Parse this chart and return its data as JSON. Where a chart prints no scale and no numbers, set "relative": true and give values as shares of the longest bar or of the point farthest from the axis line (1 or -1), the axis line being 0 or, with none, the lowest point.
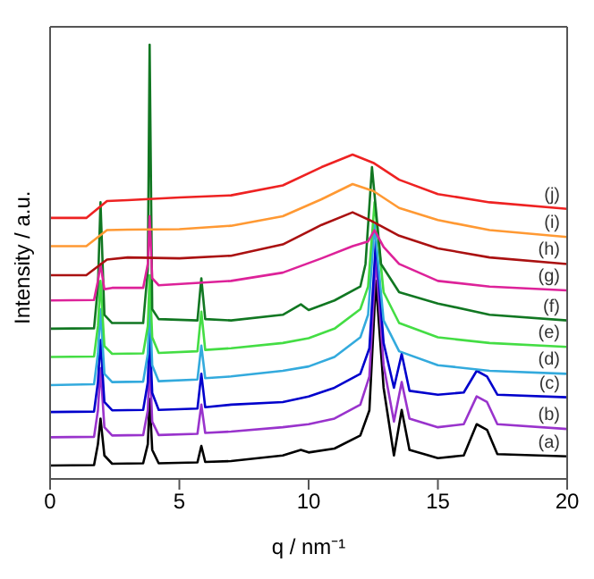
{
  "chart_data": {
    "type": "line",
    "relative": true,
    "xlabel": "q / nm⁻¹",
    "ylabel": "Intensity / a.u.",
    "xlim": [
      0,
      20
    ],
    "xticks": [
      0,
      5,
      10,
      15,
      20
    ],
    "series": [
      {
        "name": "(a)",
        "color": "#000000",
        "x": [
          0,
          1.7,
          1.85,
          1.95,
          2.1,
          2.4,
          3.6,
          3.78,
          3.85,
          3.95,
          4.2,
          5.7,
          5.85,
          6.0,
          7,
          9,
          9.7,
          10,
          11,
          12,
          12.35,
          12.6,
          12.9,
          13.3,
          13.6,
          13.9,
          15,
          16,
          16.5,
          16.9,
          17.3,
          20
        ],
        "values": [
          0.031,
          0.032,
          0.08,
          0.139,
          0.054,
          0.035,
          0.036,
          0.08,
          0.184,
          0.067,
          0.036,
          0.038,
          0.076,
          0.039,
          0.041,
          0.054,
          0.067,
          0.061,
          0.07,
          0.1,
          0.158,
          0.456,
          0.21,
          0.054,
          0.159,
          0.067,
          0.048,
          0.054,
          0.126,
          0.113,
          0.057,
          0.052
        ]
      },
      {
        "name": "(b)",
        "color": "#9933cc",
        "x": [
          0,
          1.7,
          1.85,
          1.95,
          2.1,
          2.4,
          3.6,
          3.78,
          3.85,
          3.95,
          4.2,
          5.7,
          5.85,
          6.0,
          7,
          9,
          10,
          11,
          12,
          12.35,
          12.6,
          12.9,
          13.3,
          13.6,
          13.9,
          15,
          16,
          16.5,
          16.9,
          17.3,
          20
        ],
        "values": [
          0.096,
          0.097,
          0.158,
          0.255,
          0.119,
          0.1,
          0.101,
          0.158,
          0.275,
          0.132,
          0.101,
          0.104,
          0.171,
          0.106,
          0.109,
          0.119,
          0.126,
          0.139,
          0.171,
          0.236,
          0.508,
          0.262,
          0.132,
          0.223,
          0.139,
          0.119,
          0.126,
          0.19,
          0.177,
          0.126,
          0.115
        ]
      },
      {
        "name": "(c)",
        "color": "#0000cc",
        "x": [
          0,
          1.7,
          1.85,
          1.95,
          2.1,
          2.4,
          3.6,
          3.78,
          3.85,
          3.95,
          4.2,
          5.7,
          5.85,
          6.0,
          7,
          9,
          10,
          11,
          12,
          12.35,
          12.6,
          12.9,
          13.3,
          13.6,
          13.9,
          15,
          16,
          16.5,
          16.9,
          17.3,
          20
        ],
        "values": [
          0.154,
          0.155,
          0.223,
          0.32,
          0.177,
          0.158,
          0.159,
          0.223,
          0.339,
          0.198,
          0.159,
          0.162,
          0.242,
          0.165,
          0.171,
          0.177,
          0.19,
          0.21,
          0.242,
          0.301,
          0.547,
          0.313,
          0.21,
          0.288,
          0.203,
          0.194,
          0.199,
          0.249,
          0.236,
          0.194,
          0.188
        ]
      },
      {
        "name": "(d)",
        "color": "#33aadd",
        "x": [
          0,
          1.7,
          1.85,
          1.95,
          2.1,
          2.4,
          3.6,
          3.78,
          3.85,
          3.95,
          4.2,
          5.7,
          5.85,
          6.0,
          7,
          9,
          10,
          11,
          12,
          12.3,
          12.55,
          12.9,
          13.5,
          15,
          17,
          20
        ],
        "values": [
          0.216,
          0.218,
          0.288,
          0.391,
          0.242,
          0.223,
          0.224,
          0.288,
          0.411,
          0.262,
          0.225,
          0.229,
          0.307,
          0.232,
          0.236,
          0.249,
          0.259,
          0.281,
          0.326,
          0.378,
          0.585,
          0.365,
          0.294,
          0.262,
          0.249,
          0.242
        ]
      },
      {
        "name": "(e)",
        "color": "#44dd44",
        "x": [
          0,
          1.7,
          1.85,
          1.95,
          2.1,
          2.4,
          3.6,
          3.78,
          3.85,
          3.95,
          4.2,
          5.7,
          5.85,
          6.0,
          7,
          9,
          10,
          11,
          12,
          12.3,
          12.55,
          12.9,
          13.5,
          15,
          17,
          20
        ],
        "values": [
          0.281,
          0.282,
          0.352,
          0.456,
          0.306,
          0.288,
          0.289,
          0.352,
          0.469,
          0.326,
          0.29,
          0.294,
          0.385,
          0.297,
          0.301,
          0.313,
          0.324,
          0.346,
          0.391,
          0.443,
          0.637,
          0.43,
          0.359,
          0.326,
          0.313,
          0.304
        ]
      },
      {
        "name": "(f)",
        "color": "#117722",
        "x": [
          0,
          1.7,
          1.85,
          1.95,
          2.1,
          2.4,
          3.6,
          3.78,
          3.85,
          3.95,
          4.2,
          5.7,
          5.85,
          6.0,
          7,
          9,
          9.7,
          10,
          11,
          12,
          12.2,
          12.45,
          12.8,
          13.5,
          15,
          17,
          20
        ],
        "values": [
          0.346,
          0.347,
          0.443,
          0.637,
          0.378,
          0.359,
          0.359,
          0.482,
          1,
          0.391,
          0.368,
          0.365,
          0.462,
          0.368,
          0.365,
          0.378,
          0.402,
          0.389,
          0.411,
          0.443,
          0.495,
          0.718,
          0.495,
          0.43,
          0.404,
          0.378,
          0.365
        ]
      },
      {
        "name": "(g)",
        "color": "#dd2299",
        "x": [
          0,
          1.7,
          1.85,
          1.95,
          2.1,
          2.4,
          3.6,
          3.78,
          3.85,
          3.95,
          4.2,
          7,
          9,
          10.5,
          11.7,
          12.3,
          12.55,
          12.9,
          13.5,
          15,
          17,
          20
        ],
        "values": [
          0.411,
          0.412,
          0.456,
          0.495,
          0.437,
          0.44,
          0.44,
          0.495,
          0.605,
          0.462,
          0.446,
          0.456,
          0.475,
          0.508,
          0.536,
          0.547,
          0.573,
          0.534,
          0.495,
          0.456,
          0.443,
          0.434
        ]
      },
      {
        "name": "(h)",
        "color": "#aa1111",
        "x": [
          0,
          1.4,
          2.2,
          3,
          5,
          7,
          9,
          10.5,
          11.7,
          12.5,
          13.5,
          15,
          17,
          20
        ],
        "values": [
          0.469,
          0.469,
          0.505,
          0.51,
          0.508,
          0.514,
          0.54,
          0.585,
          0.614,
          0.592,
          0.56,
          0.531,
          0.51,
          0.495
        ]
      },
      {
        "name": "(i)",
        "color": "#ff9933",
        "x": [
          0,
          1.4,
          2.2,
          3,
          5,
          7,
          9,
          10.5,
          11.7,
          12.5,
          13.5,
          15,
          17,
          20
        ],
        "values": [
          0.536,
          0.536,
          0.573,
          0.574,
          0.575,
          0.583,
          0.605,
          0.644,
          0.679,
          0.663,
          0.624,
          0.596,
          0.573,
          0.557
        ]
      },
      {
        "name": "(j)",
        "color": "#ee2222",
        "x": [
          0,
          1.4,
          2.2,
          3,
          5,
          7,
          9,
          10.5,
          11.7,
          12.5,
          13.5,
          15,
          17,
          20
        ],
        "values": [
          0.601,
          0.601,
          0.64,
          0.642,
          0.648,
          0.653,
          0.676,
          0.718,
          0.747,
          0.728,
          0.689,
          0.656,
          0.637,
          0.622
        ]
      }
    ]
  }
}
